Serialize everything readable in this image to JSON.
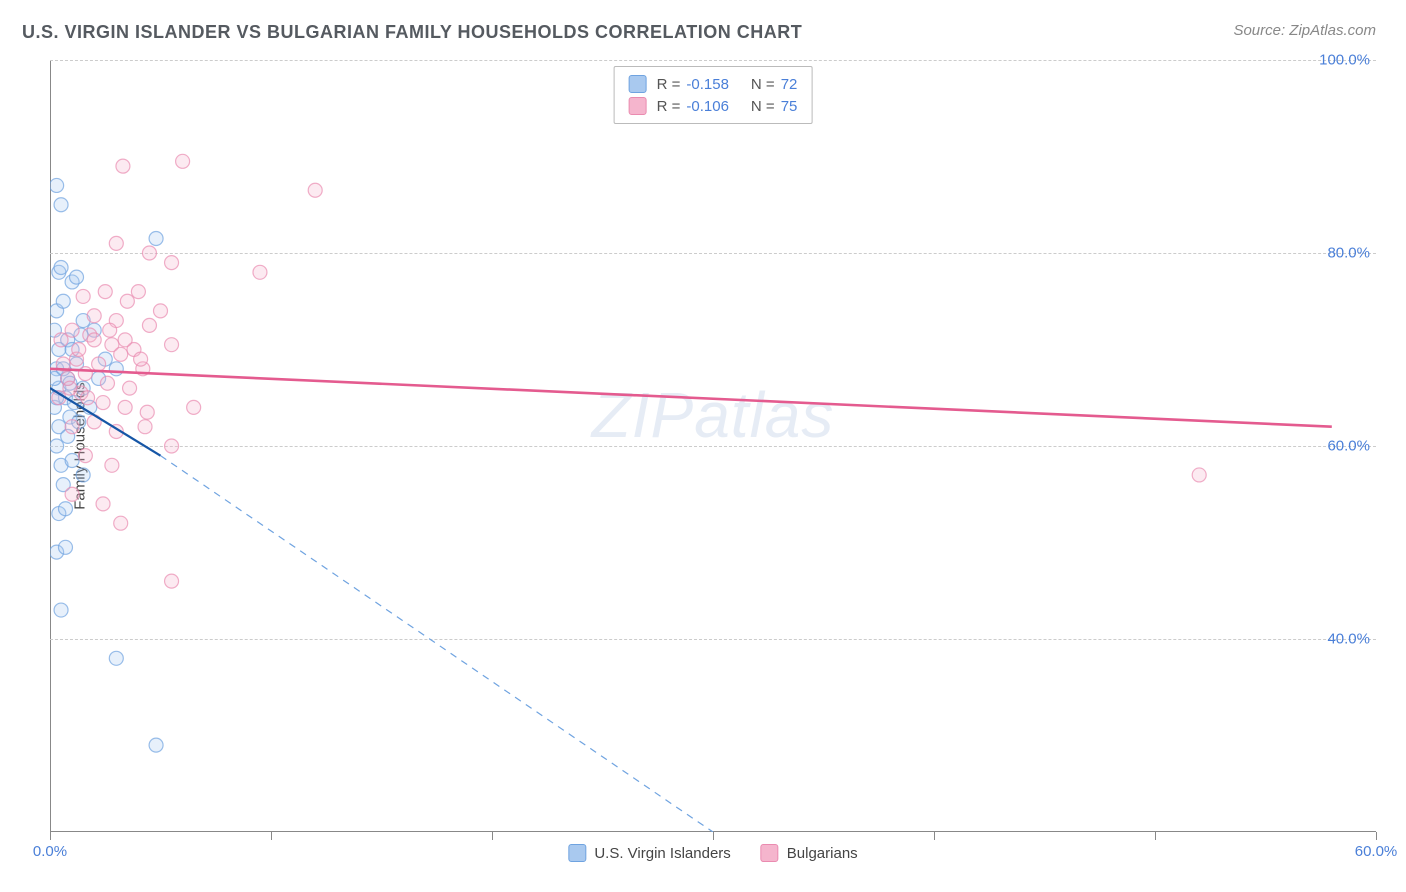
{
  "title": "U.S. VIRGIN ISLANDER VS BULGARIAN FAMILY HOUSEHOLDS CORRELATION CHART",
  "source": "Source: ZipAtlas.com",
  "watermark_a": "ZIP",
  "watermark_b": "atlas",
  "chart": {
    "type": "scatter",
    "background_color": "#ffffff",
    "grid_color": "#cccccc",
    "axis_color": "#888888",
    "xlim": [
      0,
      60
    ],
    "ylim": [
      20,
      100
    ],
    "x_ticks": [
      0,
      10,
      20,
      30,
      40,
      50,
      60
    ],
    "x_tick_labels": {
      "0": "0.0%",
      "60": "60.0%"
    },
    "y_ticks": [
      40,
      60,
      80,
      100
    ],
    "y_tick_labels": {
      "40": "40.0%",
      "60": "60.0%",
      "80": "80.0%",
      "100": "100.0%"
    },
    "y_axis_label": "Family Households",
    "tick_label_color": "#4a7fd8",
    "label_fontsize": 15,
    "title_fontsize": 18,
    "marker_radius": 7,
    "series": [
      {
        "name": "U.S. Virgin Islanders",
        "key": "usvi",
        "color": "#6fa3e0",
        "fill": "#a9c9ef",
        "R": "-0.158",
        "N": "72",
        "trend": {
          "x1": 0,
          "y1": 66,
          "x2": 5,
          "y2": 59,
          "dash_to_x": 30,
          "dash_to_y": 20,
          "color": "#1656a6",
          "width": 2.2
        },
        "points": [
          [
            0.3,
            87
          ],
          [
            0.5,
            85
          ],
          [
            0.4,
            78
          ],
          [
            0.5,
            78.5
          ],
          [
            1.0,
            77
          ],
          [
            1.2,
            77.5
          ],
          [
            0.3,
            74
          ],
          [
            0.6,
            75
          ],
          [
            0.2,
            72
          ],
          [
            0.8,
            71
          ],
          [
            0.4,
            70
          ],
          [
            1.5,
            73
          ],
          [
            2.0,
            72
          ],
          [
            4.8,
            81.5
          ],
          [
            0.3,
            68
          ],
          [
            0.8,
            67
          ],
          [
            1.2,
            68.5
          ],
          [
            0.4,
            66
          ],
          [
            0.9,
            66.5
          ],
          [
            1.5,
            66
          ],
          [
            2.2,
            67
          ],
          [
            0.2,
            64
          ],
          [
            0.7,
            65
          ],
          [
            1.1,
            64.5
          ],
          [
            1.8,
            64
          ],
          [
            0.4,
            62
          ],
          [
            0.9,
            63
          ],
          [
            1.3,
            62.5
          ],
          [
            0.3,
            60
          ],
          [
            0.8,
            61
          ],
          [
            0.5,
            58
          ],
          [
            1.0,
            58.5
          ],
          [
            1.5,
            57
          ],
          [
            0.6,
            56
          ],
          [
            0.4,
            53
          ],
          [
            0.7,
            53.5
          ],
          [
            0.3,
            49
          ],
          [
            0.7,
            49.5
          ],
          [
            0.5,
            43
          ],
          [
            3.0,
            38
          ],
          [
            4.8,
            29
          ],
          [
            0.2,
            67
          ],
          [
            0.6,
            68
          ],
          [
            1.0,
            70
          ],
          [
            1.4,
            71.5
          ],
          [
            2.5,
            69
          ],
          [
            3.0,
            68
          ],
          [
            0.3,
            65
          ]
        ]
      },
      {
        "name": "Bulgians",
        "key": "bulg",
        "display_name": "Bulgarians",
        "color": "#ea8bb0",
        "fill": "#f5b5cd",
        "R": "-0.106",
        "N": "75",
        "trend": {
          "x1": 0,
          "y1": 68,
          "x2": 58,
          "y2": 62,
          "color": "#e45b8f",
          "width": 2.6
        },
        "points": [
          [
            3.3,
            89
          ],
          [
            6.0,
            89.5
          ],
          [
            12.0,
            86.5
          ],
          [
            3.0,
            81
          ],
          [
            4.5,
            80
          ],
          [
            5.5,
            79
          ],
          [
            9.5,
            78
          ],
          [
            4.0,
            76
          ],
          [
            1.5,
            75.5
          ],
          [
            2.5,
            76
          ],
          [
            3.5,
            75
          ],
          [
            5.0,
            74
          ],
          [
            3.0,
            73
          ],
          [
            2.0,
            73.5
          ],
          [
            4.5,
            72.5
          ],
          [
            1.0,
            72
          ],
          [
            0.5,
            71
          ],
          [
            1.8,
            71.5
          ],
          [
            2.8,
            70.5
          ],
          [
            3.8,
            70
          ],
          [
            5.5,
            70.5
          ],
          [
            1.2,
            69
          ],
          [
            2.2,
            68.5
          ],
          [
            3.2,
            69.5
          ],
          [
            4.2,
            68
          ],
          [
            0.8,
            67
          ],
          [
            1.6,
            67.5
          ],
          [
            2.6,
            66.5
          ],
          [
            3.6,
            66
          ],
          [
            0.4,
            65
          ],
          [
            1.4,
            65.5
          ],
          [
            2.4,
            64.5
          ],
          [
            3.4,
            64
          ],
          [
            4.4,
            63.5
          ],
          [
            6.5,
            64
          ],
          [
            1.0,
            62
          ],
          [
            2.0,
            62.5
          ],
          [
            3.0,
            61.5
          ],
          [
            4.3,
            62
          ],
          [
            5.5,
            60
          ],
          [
            1.6,
            59
          ],
          [
            2.8,
            58
          ],
          [
            1.0,
            55
          ],
          [
            2.4,
            54
          ],
          [
            3.2,
            52
          ],
          [
            5.5,
            46
          ],
          [
            52.0,
            57
          ],
          [
            0.6,
            68.5
          ],
          [
            1.3,
            70
          ],
          [
            2.0,
            71
          ],
          [
            2.7,
            72
          ],
          [
            3.4,
            71
          ],
          [
            4.1,
            69
          ],
          [
            0.9,
            66
          ],
          [
            1.7,
            65
          ]
        ]
      }
    ]
  },
  "legend_top": {
    "r_label": "R =",
    "n_label": "N ="
  },
  "legend_bottom": [
    {
      "swatch": "#a9c9ef",
      "border": "#6fa3e0",
      "label": "U.S. Virgin Islanders"
    },
    {
      "swatch": "#f5b5cd",
      "border": "#ea8bb0",
      "label": "Bulgarians"
    }
  ]
}
